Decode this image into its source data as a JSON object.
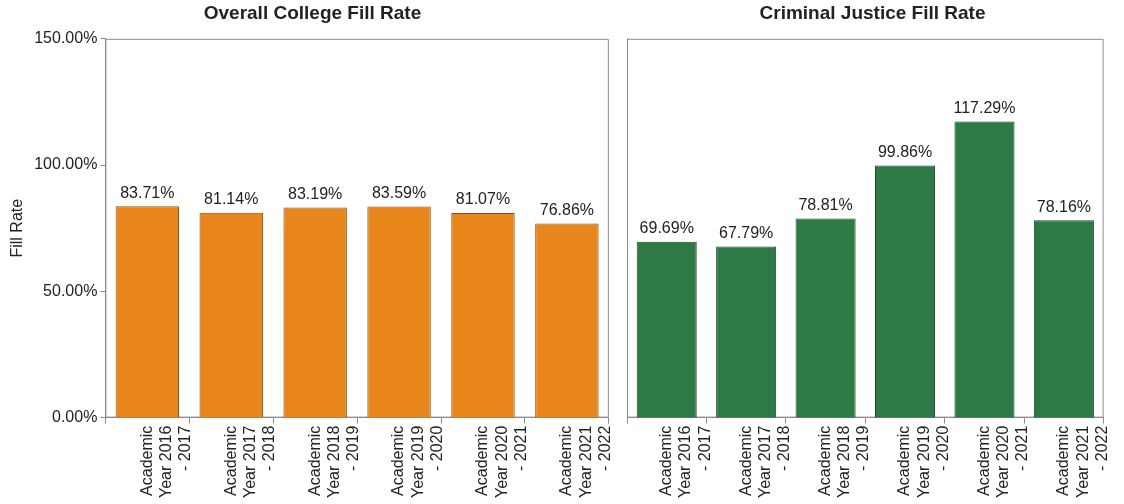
{
  "chart_data": [
    {
      "type": "bar",
      "title": "Overall College Fill Rate",
      "ylabel": "Fill Rate",
      "categories": [
        "Academic Year 2016 - 2017",
        "Academic Year 2017 - 2018",
        "Academic Year 2018 - 2019",
        "Academic Year 2019 - 2020",
        "Academic Year 2020 - 2021",
        "Academic Year 2021 - 2022"
      ],
      "values": [
        83.71,
        81.14,
        83.19,
        83.59,
        81.07,
        76.86
      ],
      "value_labels": [
        "83.71%",
        "81.14%",
        "83.19%",
        "83.59%",
        "81.07%",
        "76.86%"
      ],
      "color": "#e8861c",
      "ylim": [
        0,
        150
      ],
      "yticks": [
        {
          "value": 0,
          "label": "0.00%"
        },
        {
          "value": 50,
          "label": "50.00%"
        },
        {
          "value": 100,
          "label": "100.00%"
        },
        {
          "value": 150,
          "label": "150.00%"
        }
      ],
      "grid": false,
      "legend": false
    },
    {
      "type": "bar",
      "title": "Criminal Justice Fill Rate",
      "categories": [
        "Academic Year 2016 - 2017",
        "Academic Year 2017 - 2018",
        "Academic Year 2018 - 2019",
        "Academic Year 2019 - 2020",
        "Academic Year 2020 - 2021",
        "Academic Year 2021 - 2022"
      ],
      "values": [
        69.69,
        67.79,
        78.81,
        99.86,
        117.29,
        78.16
      ],
      "value_labels": [
        "69.69%",
        "67.79%",
        "78.81%",
        "99.86%",
        "117.29%",
        "78.16%"
      ],
      "color": "#2e7a45",
      "ylim": [
        0,
        150
      ],
      "tick_labels": "x",
      "grid": false,
      "legend": false
    }
  ]
}
